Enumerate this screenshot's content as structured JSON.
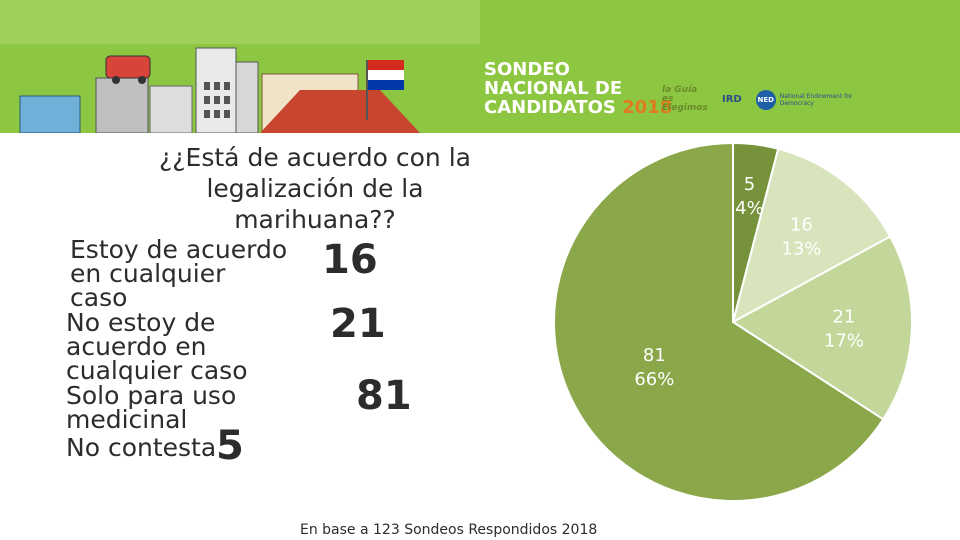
{
  "header": {
    "brand_lines": [
      "SONDEO",
      "NACIONAL DE",
      "CANDIDATOS"
    ],
    "brand_year": "2018",
    "logos": [
      {
        "name": "la-guia-logo",
        "text": "la Guía es Elegimos"
      },
      {
        "name": "ird-logo",
        "text": "IRD"
      },
      {
        "name": "ned-logo",
        "text": "NED",
        "subtext": "National Endowment for Democracy"
      }
    ]
  },
  "question": {
    "title": "¿¿Está de acuerdo con la legalización de la marihuana??"
  },
  "answers": [
    {
      "label_lines": [
        "Estoy de acuerdo",
        "en cualquier",
        "caso"
      ],
      "value": "16"
    },
    {
      "label_lines": [
        "No estoy de",
        "acuerdo en",
        "cualquier caso"
      ],
      "value": "21"
    },
    {
      "label_lines": [
        "Solo para uso",
        "medicinal"
      ],
      "value": "81"
    },
    {
      "label_lines": [
        "No contesta"
      ],
      "value": "5"
    }
  ],
  "footer": {
    "note": "En base a 123 Sondeos Respondidos 2018"
  },
  "chart_data": {
    "type": "pie",
    "title": "",
    "categories": [
      "No contesta",
      "Estoy de acuerdo en cualquier caso",
      "No estoy de acuerdo en cualquier caso",
      "Solo para uso medicinal"
    ],
    "values": [
      5,
      16,
      21,
      81
    ],
    "percent_labels": [
      "4%",
      "13%",
      "17%",
      "66%"
    ],
    "value_labels": [
      "5",
      "16",
      "21",
      "81"
    ],
    "colors": [
      "#76933c",
      "#d8e4bc",
      "#c4d79b",
      "#8aa74a"
    ],
    "start_angle_deg": -90,
    "legend": "none"
  }
}
